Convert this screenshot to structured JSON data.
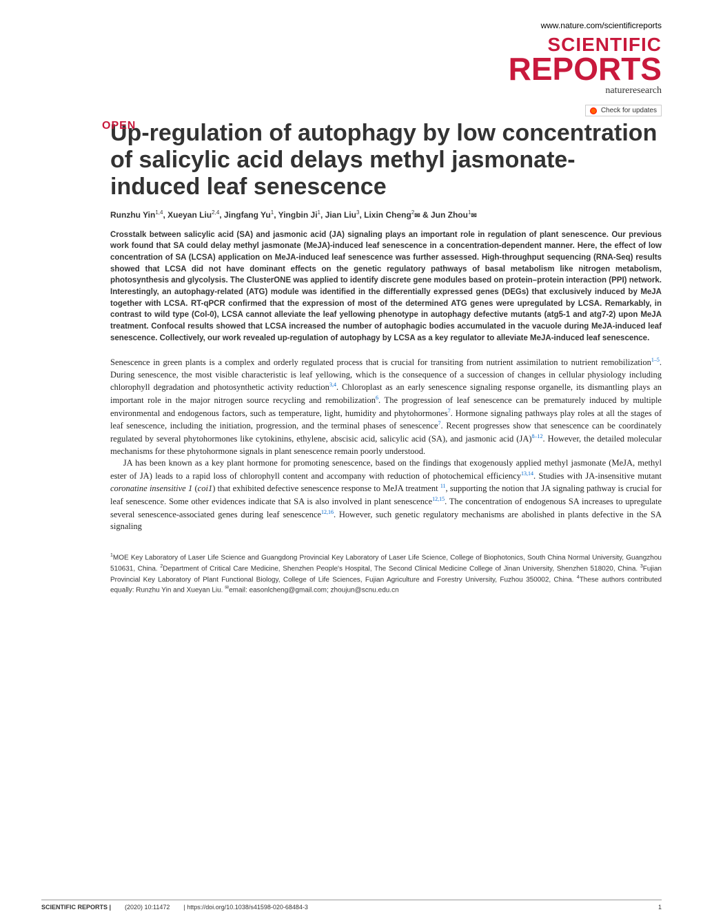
{
  "header": {
    "url": "www.nature.com/scientificreports",
    "logo_line1": "SCIENTIFIC",
    "logo_line2": "REPORTS",
    "logo_subtitle": "natureresearch",
    "updates_label": "Check for updates"
  },
  "article": {
    "open_badge": "OPEN",
    "title": "Up-regulation of autophagy by low concentration of salicylic acid delays methyl jasmonate-induced leaf senescence",
    "authors_html": "Runzhu Yin<sup>1,4</sup>, Xueyan Liu<sup>2,4</sup>, Jingfang Yu<sup>1</sup>, Yingbin Ji<sup>1</sup>, Jian Liu<sup>3</sup>, Lixin Cheng<sup>2</sup><span class='mail-icon'>✉</span> & Jun Zhou<sup>1</sup><span class='mail-icon'>✉</span>",
    "abstract": "Crosstalk between salicylic acid (SA) and jasmonic acid (JA) signaling plays an important role in regulation of plant senescence. Our previous work found that SA could delay methyl jasmonate (MeJA)-induced leaf senescence in a concentration-dependent manner. Here, the effect of low concentration of SA (LCSA) application on MeJA-induced leaf senescence was further assessed. High-throughput sequencing (RNA-Seq) results showed that LCSA did not have dominant effects on the genetic regulatory pathways of basal metabolism like nitrogen metabolism, photosynthesis and glycolysis. The ClusterONE was applied to identify discrete gene modules based on protein–protein interaction (PPI) network. Interestingly, an autophagy-related (ATG) module was identified in the differentially expressed genes (DEGs) that exclusively induced by MeJA together with LCSA. RT-qPCR confirmed that the expression of most of the determined ATG genes were upregulated by LCSA. Remarkably, in contrast to wild type (Col-0), LCSA cannot alleviate the leaf yellowing phenotype in autophagy defective mutants (atg5-1 and atg7-2) upon MeJA treatment. Confocal results showed that LCSA increased the number of autophagic bodies accumulated in the vacuole during MeJA-induced leaf senescence. Collectively, our work revealed up-regulation of autophagy by LCSA as a key regulator to alleviate MeJA-induced leaf senescence.",
    "paragraph1_html": "Senescence in green plants is a complex and orderly regulated process that is crucial for transiting from nutrient assimilation to nutrient remobilization<sup>1–5</sup>. During senescence, the most visible characteristic is leaf yellowing, which is the consequence of a succession of changes in cellular physiology including chlorophyll degradation and photosynthetic activity reduction<sup>3,4</sup>. Chloroplast as an early senescence signaling response organelle, its dismantling plays an important role in the major nitrogen source recycling and remobilization<sup>6</sup>. The progression of leaf senescence can be prematurely induced by multiple environmental and endogenous factors, such as temperature, light, humidity and phytohormones<sup>7</sup>. Hormone signaling pathways play roles at all the stages of leaf senescence, including the initiation, progression, and the terminal phases of senescence<sup>7</sup>. Recent progresses show that senescence can be coordinately regulated by several phytohormones like cytokinins, ethylene, abscisic acid, salicylic acid (SA), and jasmonic acid (JA)<sup>8–12</sup>. However, the detailed molecular mechanisms for these phytohormone signals in plant senescence remain poorly understood.",
    "paragraph2_html": "JA has been known as a key plant hormone for promoting senescence, based on the findings that exogenously applied methyl jasmonate (MeJA, methyl ester of JA) leads to a rapid loss of chlorophyll content and accompany with reduction of photochemical efficiency<sup>13,14</sup>. Studies with JA-insensitive mutant <em>coronatine insensitive 1</em> (<em>coi1</em>) that exhibited defective senescence response to MeJA treatment <sup>11</sup>, supporting the notion that JA signaling pathway is crucial for leaf senescence. Some other evidences indicate that SA is also involved in plant senescence<sup>12,15</sup>. The concentration of endogenous SA increases to upregulate several senescence-associated genes during leaf senescence<sup>12,16</sup>. However, such genetic regulatory mechanisms are abolished in plants defective in the SA signaling",
    "affiliations_html": "<sup>1</sup>MOE Key Laboratory of Laser Life Science and Guangdong Provincial Key Laboratory of Laser Life Science, College of Biophotonics, South China Normal University, Guangzhou 510631, China. <sup>2</sup>Department of Critical Care Medicine, Shenzhen People's Hospital, The Second Clinical Medicine College of Jinan University, Shenzhen 518020, China. <sup>3</sup>Fujian Provincial Key Laboratory of Plant Functional Biology, College of Life Sciences, Fujian Agriculture and Forestry University, Fuzhou 350002, China. <sup>4</sup>These authors contributed equally: Runzhu Yin and Xueyan Liu. <sup>✉</sup>email: easonlcheng@gmail.com; zhoujun@scnu.edu.cn"
  },
  "footer": {
    "journal": "SCIENTIFIC REPORTS |",
    "citation": "(2020) 10:11472",
    "doi": "| https://doi.org/10.1038/s41598-020-68484-3",
    "page_number": "1"
  },
  "colors": {
    "brand_red": "#c8193c",
    "link_blue": "#0066cc",
    "text_dark": "#333333",
    "body_text": "#222222",
    "border_gray": "#999999"
  },
  "typography": {
    "title_fontsize": 34,
    "logo_scientific_fontsize": 28,
    "logo_reports_fontsize": 46,
    "authors_fontsize": 12,
    "abstract_fontsize": 11.5,
    "body_fontsize": 12.5,
    "affiliations_fontsize": 10,
    "footer_fontsize": 9
  }
}
